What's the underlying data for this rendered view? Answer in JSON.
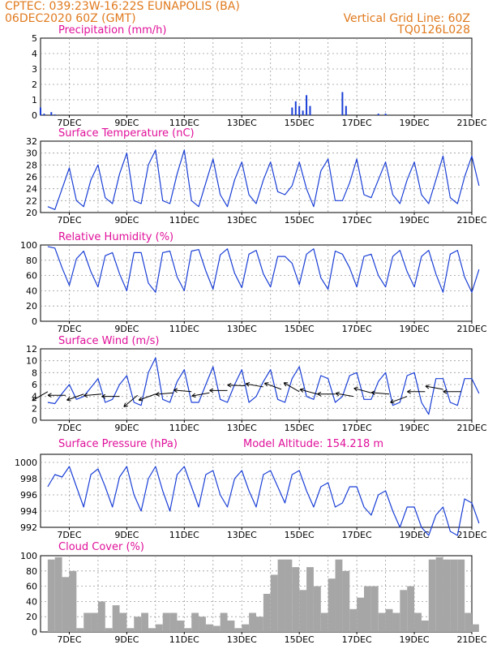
{
  "header": {
    "left_line1": "CPTEC:   039:23W-16:22S   EUNAPOLIS (BA)",
    "left_line2": "06DEC2020 60Z (GMT)",
    "right_line1": "Vertical Grid Line: 60Z",
    "right_line2": "TQ0126L028"
  },
  "colors": {
    "header": "#e07a1e",
    "panel_title": "#e0109a",
    "series": "#1a3fd6",
    "cloud": "#a6a6a6",
    "wind_arrow": "#000000"
  },
  "chart_data": [
    {
      "id": "precip",
      "type": "bar",
      "title": "Precipitation (mm/h)",
      "ylim": [
        0,
        5
      ],
      "yticks": [
        "0",
        "1",
        "2",
        "3",
        "4",
        "5"
      ],
      "xticks": [
        "7DEC",
        "9DEC",
        "11DEC",
        "13DEC",
        "15DEC",
        "17DEC",
        "19DEC",
        "21DEC"
      ],
      "x_unit": "days since 06DEC2020 00Z",
      "x": [
        0.0,
        0.125,
        0.375,
        0.5,
        8.75,
        8.875,
        9.0,
        9.125,
        9.25,
        9.375,
        10.5,
        10.625,
        11.75,
        12.0
      ],
      "values": [
        0.5,
        0.1,
        0.2,
        0.05,
        0.5,
        0.9,
        0.6,
        0.3,
        1.3,
        0.6,
        1.5,
        0.6,
        0.1,
        0.1
      ]
    },
    {
      "id": "temp",
      "type": "line",
      "title": "Surface Temperature (nC)",
      "ylim": [
        20,
        32
      ],
      "yticks": [
        "20",
        "22",
        "24",
        "26",
        "28",
        "30",
        "32"
      ],
      "xticks": [
        "7DEC",
        "9DEC",
        "11DEC",
        "13DEC",
        "15DEC",
        "17DEC",
        "19DEC",
        "21DEC"
      ],
      "x_unit": "days since 06DEC2020 00Z",
      "x": [
        0.25,
        0.5,
        0.75,
        1.0,
        1.25,
        1.5,
        1.75,
        2.0,
        2.25,
        2.5,
        2.75,
        3.0,
        3.25,
        3.5,
        3.75,
        4.0,
        4.25,
        4.5,
        4.75,
        5.0,
        5.25,
        5.5,
        5.75,
        6.0,
        6.25,
        6.5,
        6.75,
        7.0,
        7.25,
        7.5,
        7.75,
        8.0,
        8.25,
        8.5,
        8.75,
        9.0,
        9.25,
        9.5,
        9.75,
        10.0,
        10.25,
        10.5,
        10.75,
        11.0,
        11.25,
        11.5,
        11.75,
        12.0,
        12.25,
        12.5,
        12.75,
        13.0,
        13.25,
        13.5,
        13.75,
        14.0,
        14.25,
        14.5,
        14.75,
        15.0,
        15.25
      ],
      "values": [
        21.0,
        20.5,
        24.0,
        27.5,
        22.0,
        21.0,
        25.5,
        28.0,
        22.5,
        21.5,
        26.5,
        30.0,
        22.0,
        21.5,
        28.0,
        30.5,
        22.0,
        21.5,
        26.5,
        30.5,
        22.0,
        21.0,
        25.0,
        29.0,
        23.0,
        21.0,
        25.5,
        28.5,
        23.0,
        21.5,
        25.5,
        28.5,
        23.5,
        23.0,
        24.5,
        28.5,
        24.0,
        21.0,
        27.0,
        29.0,
        22.0,
        22.0,
        25.0,
        29.0,
        23.0,
        22.5,
        25.5,
        28.5,
        23.0,
        21.5,
        25.5,
        28.5,
        23.0,
        21.5,
        25.5,
        29.5,
        22.5,
        21.5,
        26.0,
        29.5,
        24.5
      ]
    },
    {
      "id": "rh",
      "type": "line",
      "title": "Relative Humidity (%)",
      "ylim": [
        0,
        100
      ],
      "yticks": [
        "0",
        "20",
        "40",
        "60",
        "80",
        "100"
      ],
      "xticks": [
        "7DEC",
        "9DEC",
        "11DEC",
        "13DEC",
        "15DEC",
        "17DEC",
        "19DEC",
        "21DEC"
      ],
      "x_unit": "days since 06DEC2020 00Z",
      "x": [
        0.25,
        0.5,
        0.75,
        1.0,
        1.25,
        1.5,
        1.75,
        2.0,
        2.25,
        2.5,
        2.75,
        3.0,
        3.25,
        3.5,
        3.75,
        4.0,
        4.25,
        4.5,
        4.75,
        5.0,
        5.25,
        5.5,
        5.75,
        6.0,
        6.25,
        6.5,
        6.75,
        7.0,
        7.25,
        7.5,
        7.75,
        8.0,
        8.25,
        8.5,
        8.75,
        9.0,
        9.25,
        9.5,
        9.75,
        10.0,
        10.25,
        10.5,
        10.75,
        11.0,
        11.25,
        11.5,
        11.75,
        12.0,
        12.25,
        12.5,
        12.75,
        13.0,
        13.25,
        13.5,
        13.75,
        14.0,
        14.25,
        14.5,
        14.75,
        15.0,
        15.25
      ],
      "values": [
        98,
        96,
        70,
        47,
        82,
        92,
        65,
        45,
        86,
        90,
        62,
        40,
        90,
        90,
        50,
        38,
        90,
        92,
        58,
        40,
        92,
        94,
        66,
        42,
        87,
        95,
        63,
        44,
        88,
        93,
        62,
        45,
        85,
        85,
        76,
        48,
        88,
        95,
        57,
        42,
        92,
        88,
        70,
        45,
        85,
        88,
        60,
        45,
        85,
        93,
        65,
        45,
        85,
        93,
        62,
        38,
        88,
        93,
        58,
        38,
        68
      ]
    },
    {
      "id": "wind",
      "type": "line",
      "title": "Surface Wind (m/s)",
      "ylim": [
        0,
        12
      ],
      "yticks": [
        "0",
        "2",
        "4",
        "6",
        "8",
        "10",
        "12"
      ],
      "xticks": [
        "7DEC",
        "9DEC",
        "11DEC",
        "13DEC",
        "15DEC",
        "17DEC",
        "19DEC",
        "21DEC"
      ],
      "x_unit": "days since 06DEC2020 00Z",
      "x": [
        0.25,
        0.5,
        0.75,
        1.0,
        1.25,
        1.5,
        1.75,
        2.0,
        2.25,
        2.5,
        2.75,
        3.0,
        3.25,
        3.5,
        3.75,
        4.0,
        4.25,
        4.5,
        4.75,
        5.0,
        5.25,
        5.5,
        5.75,
        6.0,
        6.25,
        6.5,
        6.75,
        7.0,
        7.25,
        7.5,
        7.75,
        8.0,
        8.25,
        8.5,
        8.75,
        9.0,
        9.25,
        9.5,
        9.75,
        10.0,
        10.25,
        10.5,
        10.75,
        11.0,
        11.25,
        11.5,
        11.75,
        12.0,
        12.25,
        12.5,
        12.75,
        13.0,
        13.25,
        13.5,
        13.75,
        14.0,
        14.25,
        14.5,
        14.75,
        15.0,
        15.25
      ],
      "values": [
        3.0,
        2.8,
        4.5,
        6.0,
        3.5,
        4.0,
        5.5,
        7.0,
        3.0,
        3.5,
        6.0,
        7.5,
        3.0,
        2.5,
        8.0,
        10.5,
        3.5,
        3.0,
        6.5,
        8.5,
        3.0,
        3.0,
        6.0,
        9.0,
        3.5,
        3.0,
        6.0,
        8.5,
        3.0,
        4.0,
        6.5,
        8.5,
        3.5,
        3.0,
        7.0,
        9.0,
        4.0,
        3.5,
        7.5,
        7.0,
        3.0,
        4.0,
        7.5,
        8.0,
        3.5,
        3.5,
        6.5,
        8.0,
        2.5,
        3.0,
        7.5,
        8.0,
        3.0,
        1.0,
        7.0,
        7.0,
        3.0,
        2.5,
        7.0,
        7.0,
        4.5
      ],
      "arrows_speed": [
        4.8,
        4.2,
        4.4,
        4.4,
        4.0,
        4.2,
        4.4,
        4.6,
        4.8,
        4.6,
        5.0,
        5.8,
        5.6,
        5.2,
        4.8,
        4.4,
        4.4,
        4.0,
        4.6,
        4.4,
        4.0,
        4.8,
        5.2,
        4.8
      ],
      "arrows_dx": [
        0.6,
        0.6,
        0.6,
        0.6,
        0.6,
        0.6,
        0.6,
        0.6,
        0.6,
        0.6,
        0.6,
        0.6,
        0.6,
        0.6,
        0.6,
        0.6,
        0.6,
        0.6,
        0.6,
        0.6,
        0.6,
        0.6,
        0.6,
        0.6
      ],
      "arrows_angle_deg": [
        210,
        180,
        200,
        185,
        180,
        220,
        200,
        185,
        175,
        190,
        180,
        178,
        170,
        160,
        150,
        165,
        180,
        170,
        165,
        175,
        200,
        180,
        170,
        180
      ]
    },
    {
      "id": "pressure",
      "type": "line",
      "title": "Surface Pressure (hPa)",
      "annotation": "Model Altitude: 154.218 m",
      "ylim": [
        992,
        1001
      ],
      "yticks": [
        "992",
        "994",
        "996",
        "998",
        "1000"
      ],
      "xticks": [
        "7DEC",
        "9DEC",
        "11DEC",
        "13DEC",
        "15DEC",
        "17DEC",
        "19DEC",
        "21DEC"
      ],
      "x_unit": "days since 06DEC2020 00Z",
      "x": [
        0.25,
        0.5,
        0.75,
        1.0,
        1.25,
        1.5,
        1.75,
        2.0,
        2.25,
        2.5,
        2.75,
        3.0,
        3.25,
        3.5,
        3.75,
        4.0,
        4.25,
        4.5,
        4.75,
        5.0,
        5.25,
        5.5,
        5.75,
        6.0,
        6.25,
        6.5,
        6.75,
        7.0,
        7.25,
        7.5,
        7.75,
        8.0,
        8.25,
        8.5,
        8.75,
        9.0,
        9.25,
        9.5,
        9.75,
        10.0,
        10.25,
        10.5,
        10.75,
        11.0,
        11.25,
        11.5,
        11.75,
        12.0,
        12.25,
        12.5,
        12.75,
        13.0,
        13.25,
        13.5,
        13.75,
        14.0,
        14.25,
        14.5,
        14.75,
        15.0,
        15.25
      ],
      "values": [
        997.0,
        998.5,
        998.2,
        999.5,
        997.0,
        994.5,
        998.5,
        999.2,
        997.0,
        994.5,
        998.2,
        999.5,
        996.0,
        994.0,
        998.0,
        999.5,
        996.5,
        994.0,
        998.5,
        999.5,
        997.0,
        994.5,
        998.5,
        999.0,
        996.0,
        994.5,
        998.0,
        999.0,
        996.5,
        994.5,
        998.5,
        999.0,
        997.0,
        995.0,
        998.5,
        999.0,
        996.5,
        994.5,
        997.0,
        997.5,
        994.5,
        995.0,
        997.0,
        997.0,
        994.5,
        993.5,
        996.0,
        996.5,
        994.0,
        992.0,
        994.5,
        994.5,
        992.0,
        991.0,
        993.5,
        994.5,
        991.5,
        991.0,
        995.5,
        995.0,
        992.5
      ]
    },
    {
      "id": "cloud",
      "type": "bar",
      "title": "Cloud Cover (%)",
      "ylim": [
        0,
        100
      ],
      "yticks": [
        "0",
        "20",
        "40",
        "60",
        "80",
        "100"
      ],
      "xticks": [
        "7DEC",
        "9DEC",
        "11DEC",
        "13DEC",
        "15DEC",
        "17DEC",
        "19DEC",
        "21DEC"
      ],
      "x_unit": "days since 06DEC2020 00Z",
      "x": [
        0.25,
        0.5,
        0.75,
        1.0,
        1.25,
        1.5,
        1.75,
        2.0,
        2.25,
        2.5,
        2.75,
        3.0,
        3.25,
        3.5,
        3.75,
        4.0,
        4.25,
        4.5,
        4.75,
        5.0,
        5.25,
        5.5,
        5.75,
        6.0,
        6.25,
        6.5,
        6.75,
        7.0,
        7.25,
        7.5,
        7.75,
        8.0,
        8.25,
        8.5,
        8.75,
        9.0,
        9.25,
        9.5,
        9.75,
        10.0,
        10.25,
        10.5,
        10.75,
        11.0,
        11.25,
        11.5,
        11.75,
        12.0,
        12.25,
        12.5,
        12.75,
        13.0,
        13.25,
        13.5,
        13.75,
        14.0,
        14.25,
        14.5,
        14.75,
        15.0
      ],
      "values": [
        95,
        98,
        72,
        80,
        5,
        25,
        25,
        40,
        5,
        35,
        25,
        5,
        20,
        25,
        5,
        10,
        25,
        25,
        15,
        5,
        25,
        20,
        10,
        8,
        25,
        15,
        5,
        10,
        25,
        20,
        50,
        75,
        95,
        95,
        85,
        55,
        85,
        60,
        25,
        70,
        95,
        80,
        30,
        45,
        60,
        60,
        25,
        30,
        25,
        55,
        60,
        25,
        15,
        95,
        98,
        95,
        95,
        95,
        25,
        10
      ]
    }
  ]
}
